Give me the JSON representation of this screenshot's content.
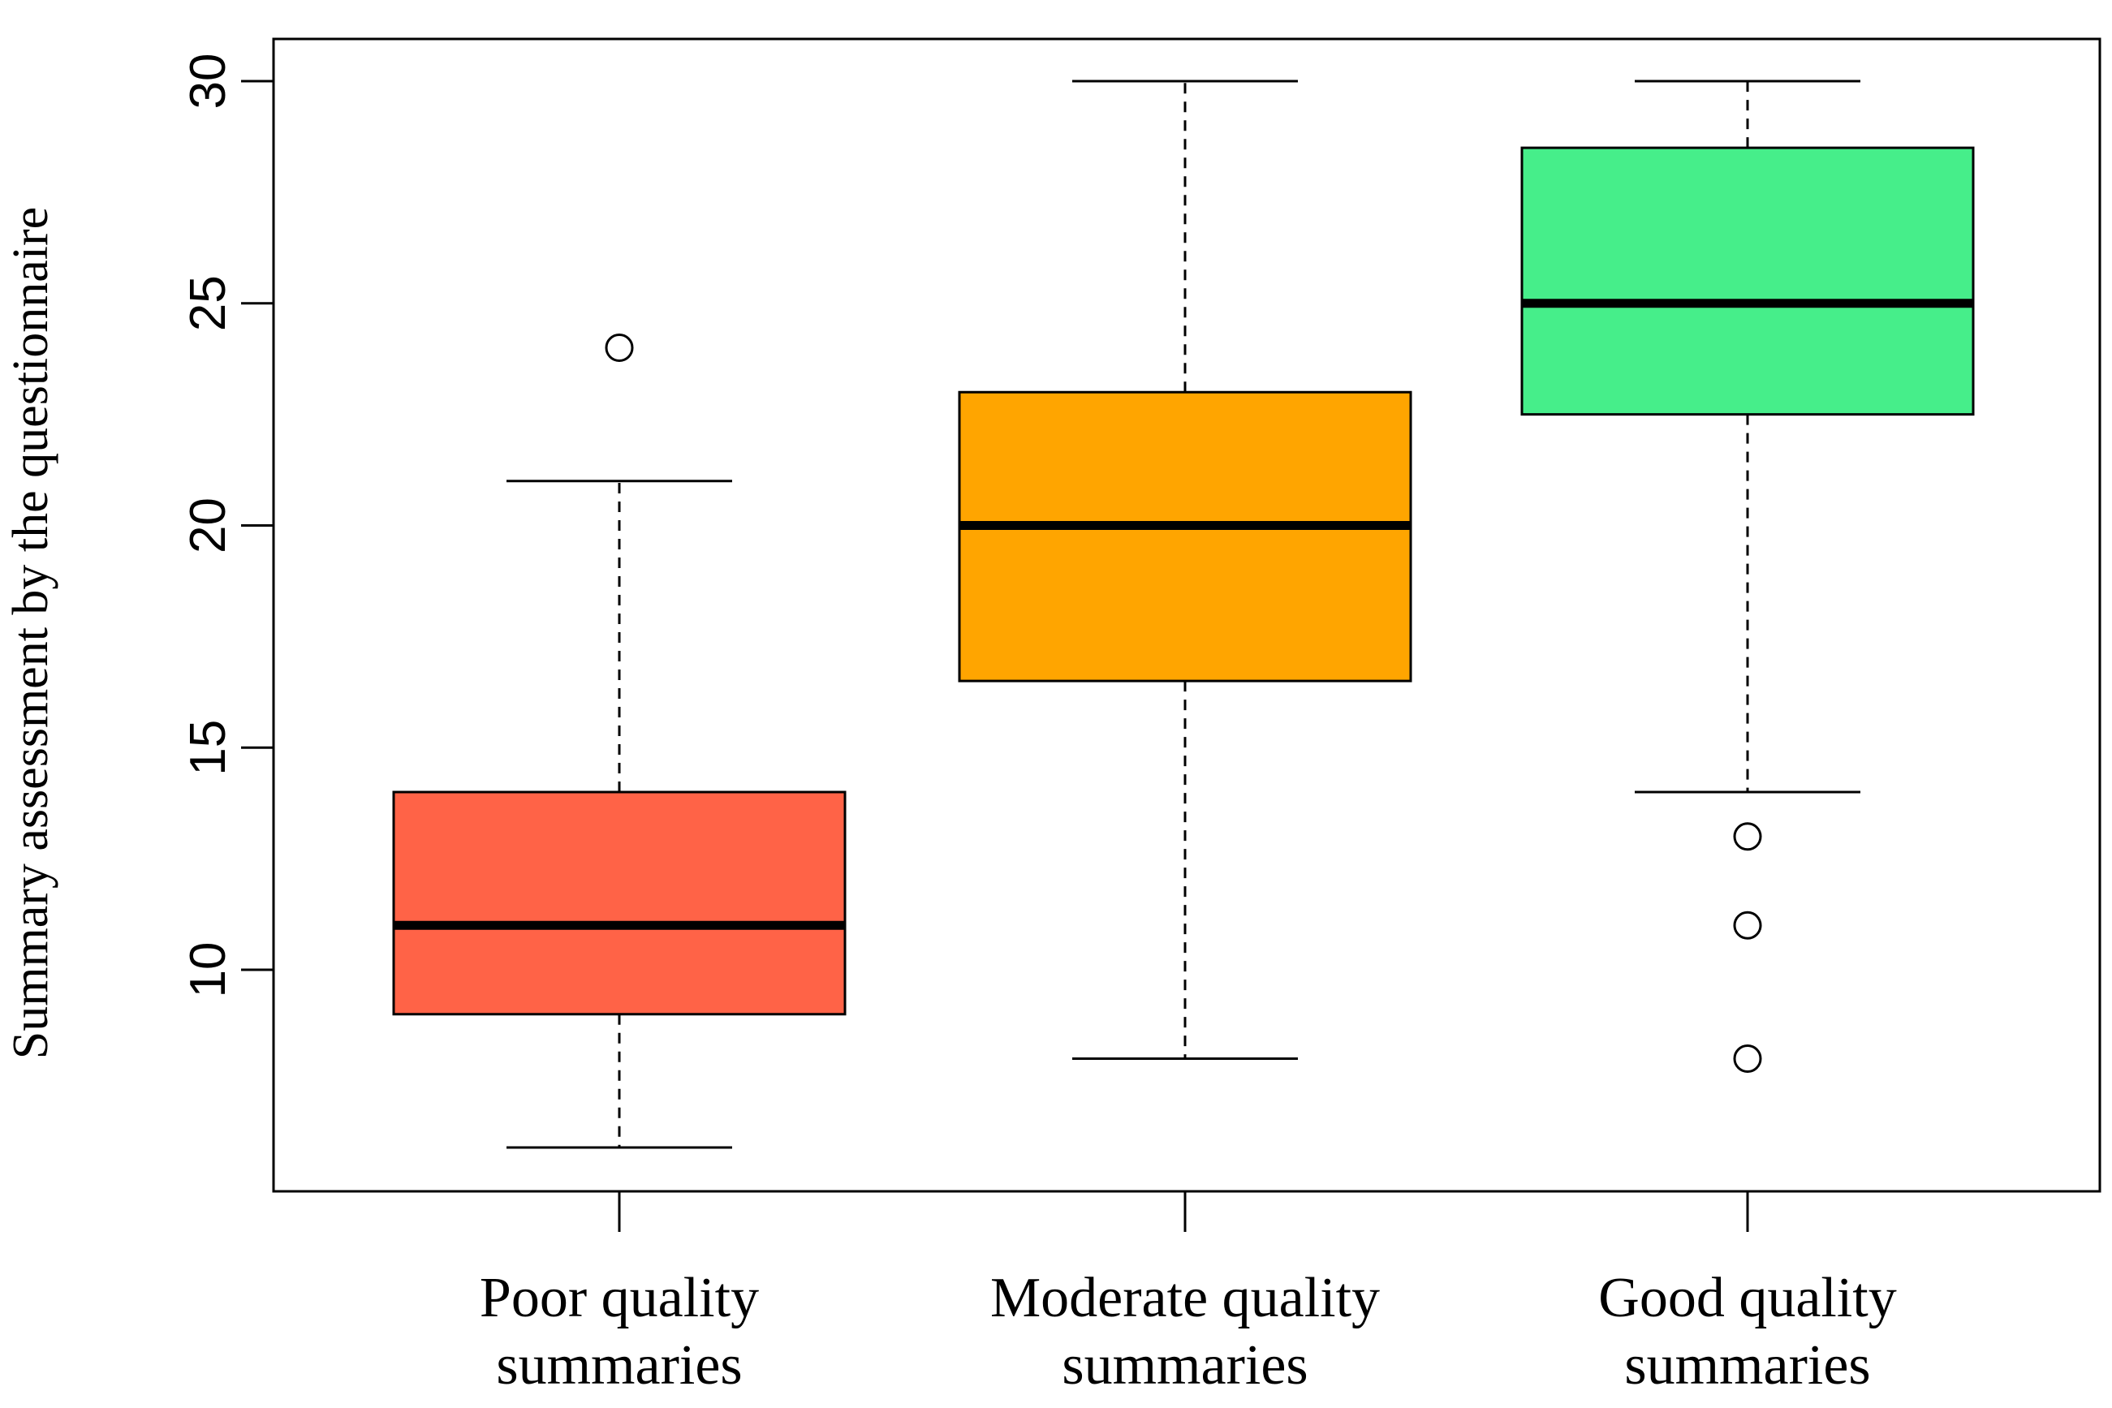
{
  "chart_data": {
    "type": "boxplot",
    "title": "",
    "xlabel": "",
    "ylabel": "Summary assessment by the questionnaire",
    "ylim": [
      5,
      30.9
    ],
    "yticks": [
      10,
      15,
      20,
      25,
      30
    ],
    "grid": false,
    "categories": [
      {
        "line1": "Poor quality",
        "line2": "summaries"
      },
      {
        "line1": "Moderate quality",
        "line2": "summaries"
      },
      {
        "line1": "Good quality",
        "line2": "summaries"
      }
    ],
    "series": [
      {
        "name": "Poor quality summaries",
        "whisker_low": 6,
        "q1": 9,
        "median": 11,
        "q3": 14,
        "whisker_high": 21,
        "outliers": [
          24
        ],
        "color": "#FF6347"
      },
      {
        "name": "Moderate quality summaries",
        "whisker_low": 8,
        "q1": 16.5,
        "median": 20,
        "q3": 23,
        "whisker_high": 30,
        "outliers": [],
        "color": "#FFA500"
      },
      {
        "name": "Good quality summaries",
        "whisker_low": 14,
        "q1": 22.5,
        "median": 25,
        "q3": 28.5,
        "whisker_high": 30,
        "outliers": [
          13,
          11,
          8
        ],
        "color": "#46EE8A"
      }
    ]
  }
}
